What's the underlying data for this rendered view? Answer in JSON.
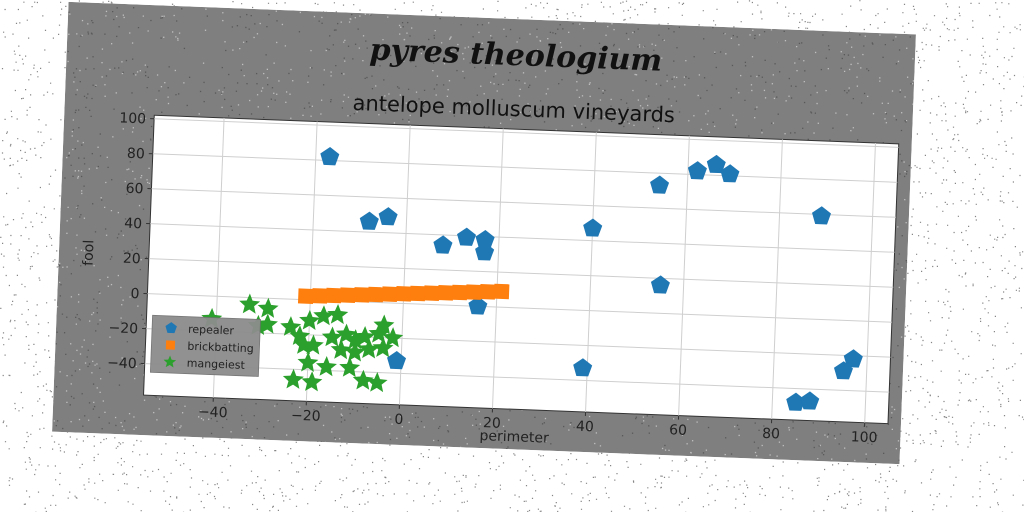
{
  "chart_data": {
    "type": "scatter",
    "title": "pyres theologium",
    "subtitle": "antelope molluscum vineyards",
    "xlabel": "perimeter",
    "ylabel": "fool",
    "xlim": [
      -55,
      105
    ],
    "ylim": [
      -58,
      102
    ],
    "xticks": [
      -40,
      -20,
      0,
      20,
      40,
      60,
      80,
      100
    ],
    "yticks": [
      -40,
      -20,
      0,
      20,
      40,
      60,
      80,
      100
    ],
    "xtick_labels": [
      "−40",
      "−20",
      "0",
      "20",
      "40",
      "60",
      "80",
      "100"
    ],
    "ytick_labels": [
      "−40",
      "−20",
      "0",
      "20",
      "40",
      "60",
      "80",
      "100"
    ],
    "grid": true,
    "legend_position": "lower-left",
    "series": [
      {
        "name": "repealer",
        "marker": "pentagon",
        "color": "#1f77b4",
        "points": [
          [
            -17,
            82
          ],
          [
            -8,
            46
          ],
          [
            -4,
            49
          ],
          [
            8,
            34
          ],
          [
            13,
            39
          ],
          [
            17,
            38
          ],
          [
            17,
            31
          ],
          [
            16,
            0
          ],
          [
            -1,
            -33
          ],
          [
            40,
            47
          ],
          [
            39,
            -33
          ],
          [
            54,
            73
          ],
          [
            55,
            16
          ],
          [
            62,
            82
          ],
          [
            66,
            86
          ],
          [
            69,
            81
          ],
          [
            89,
            59
          ],
          [
            97,
            -22
          ],
          [
            95,
            -29
          ],
          [
            85,
            -48
          ],
          [
            88,
            -47
          ]
        ]
      },
      {
        "name": "brickbatting",
        "marker": "square",
        "color": "#ff7f0e",
        "points": [
          [
            -21,
            2
          ],
          [
            -18,
            2.5
          ],
          [
            -15,
            3
          ],
          [
            -12,
            3.5
          ],
          [
            -9,
            4
          ],
          [
            -6,
            4.5
          ],
          [
            -3,
            5
          ],
          [
            0,
            5.5
          ],
          [
            3,
            6
          ],
          [
            6,
            6.5
          ],
          [
            9,
            7
          ],
          [
            12,
            7.5
          ],
          [
            15,
            8
          ],
          [
            18,
            8.5
          ],
          [
            21,
            9
          ]
        ]
      },
      {
        "name": "mangeiest",
        "marker": "star",
        "color": "#2ca02c",
        "points": [
          [
            -41,
            -13
          ],
          [
            -33,
            -4
          ],
          [
            -29,
            -6
          ],
          [
            -31,
            -16
          ],
          [
            -29,
            -15
          ],
          [
            -24,
            -16
          ],
          [
            -20,
            -12
          ],
          [
            -17,
            -9
          ],
          [
            -14,
            -8
          ],
          [
            -22,
            -21
          ],
          [
            -21,
            -26
          ],
          [
            -19,
            -26
          ],
          [
            -15,
            -21
          ],
          [
            -12,
            -19
          ],
          [
            -10,
            -22
          ],
          [
            -8,
            -20
          ],
          [
            -5,
            -18
          ],
          [
            -4,
            -13
          ],
          [
            -2,
            -20
          ],
          [
            -13,
            -28
          ],
          [
            -10,
            -29
          ],
          [
            -7,
            -27
          ],
          [
            -4,
            -26
          ],
          [
            -20,
            -36
          ],
          [
            -16,
            -38
          ],
          [
            -11,
            -38
          ],
          [
            -8,
            -45
          ],
          [
            -5,
            -46
          ],
          [
            -19,
            -47
          ],
          [
            -23,
            -46
          ]
        ]
      }
    ]
  }
}
